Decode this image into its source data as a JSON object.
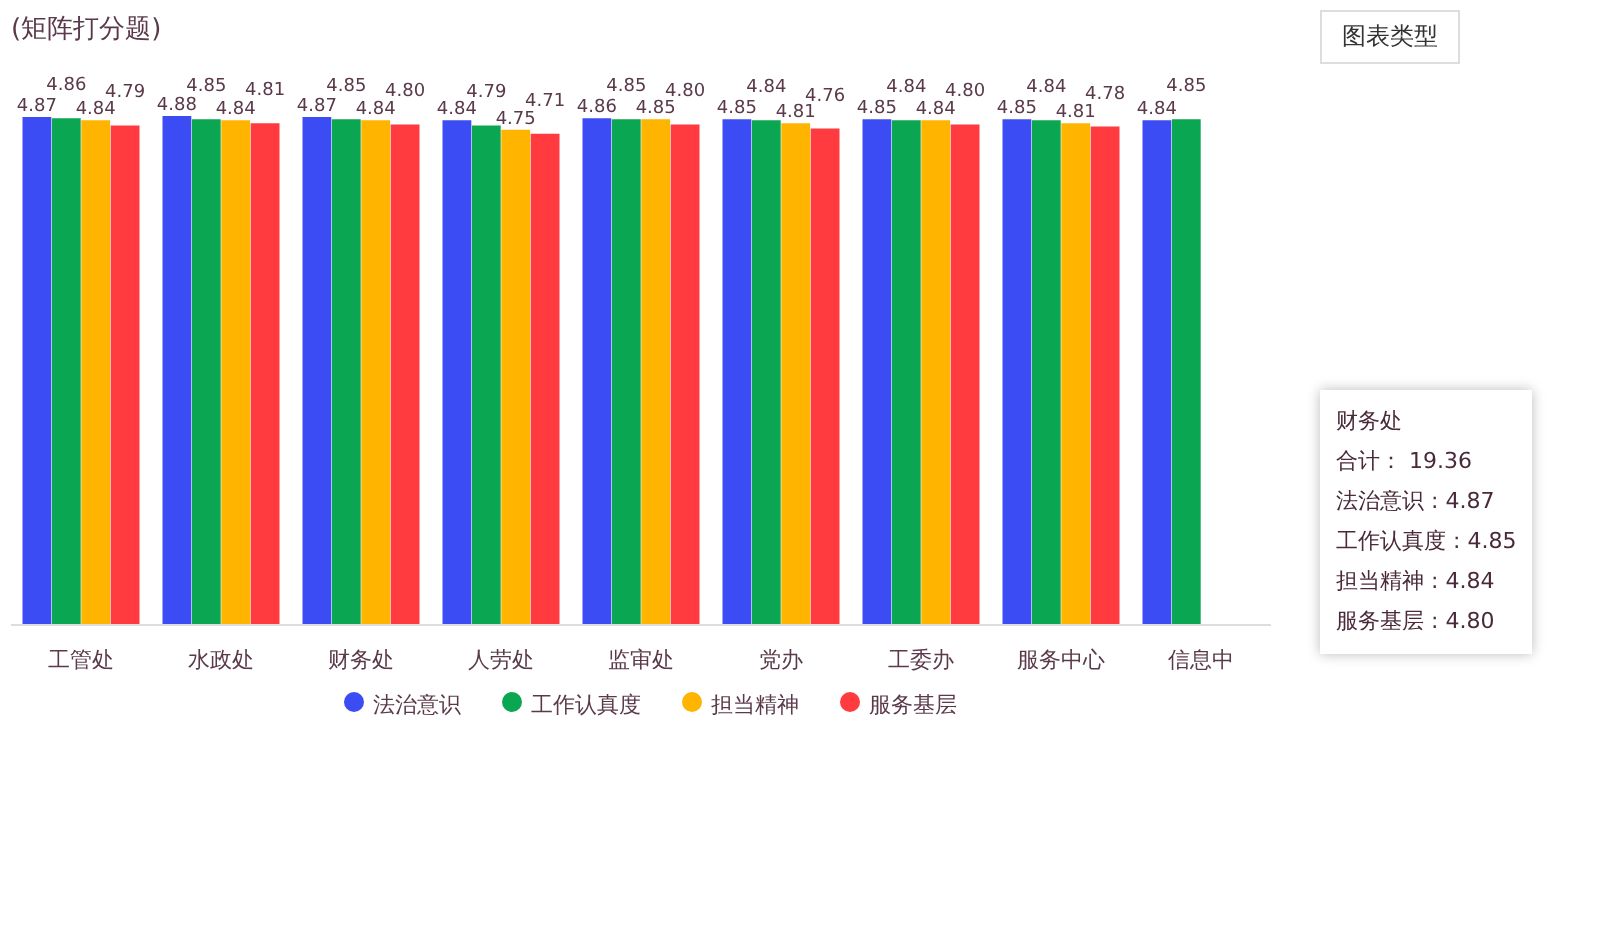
{
  "chart_data": {
    "type": "bar",
    "title": "(矩阵打分题)",
    "categories": [
      "工管处",
      "水政处",
      "财务处",
      "人劳处",
      "监审处",
      "党办",
      "工委办",
      "服务中心",
      "信息中"
    ],
    "series": [
      {
        "name": "法治意识",
        "color": "#3b4cf5",
        "values": [
          4.87,
          4.88,
          4.87,
          4.84,
          4.86,
          4.85,
          4.85,
          4.85,
          4.84
        ],
        "value_labels": [
          "4.87",
          "4.88",
          "4.87",
          "4.84",
          "4.86",
          "4.85",
          "4.85",
          "4.85",
          "4.84"
        ]
      },
      {
        "name": "工作认真度",
        "color": "#0aa652",
        "values": [
          4.86,
          4.85,
          4.85,
          4.79,
          4.85,
          4.84,
          4.84,
          4.84,
          4.85
        ],
        "value_labels": [
          "4.86",
          "4.85",
          "4.85",
          "4.79",
          "4.85",
          "4.84",
          "4.84",
          "4.84",
          "4.85"
        ]
      },
      {
        "name": "担当精神",
        "color": "#ffb400",
        "values": [
          4.84,
          4.84,
          4.84,
          4.75,
          4.85,
          4.81,
          4.84,
          4.81,
          null
        ],
        "value_labels": [
          "4.84",
          "4.84",
          "4.84",
          "4.75",
          "4.85",
          "4.81",
          "4.84",
          "4.81",
          null
        ]
      },
      {
        "name": "服务基层",
        "color": "#ff3b3f",
        "values": [
          4.79,
          4.81,
          4.8,
          4.71,
          4.8,
          4.76,
          4.8,
          4.78,
          null
        ],
        "value_labels": [
          "4.79",
          "4.81",
          "4.80",
          "4.71",
          "4.80",
          "4.76",
          "4.80",
          "4.78",
          null
        ]
      }
    ],
    "legend": "bottom",
    "annotations": [
      "图表类型",
      "财务处",
      "合计：  19.36",
      "法治意识 : 4.87",
      "工作认真度 : 4.85",
      "担当精神 : 4.84",
      "服务基层 : 4.80"
    ]
  }
}
